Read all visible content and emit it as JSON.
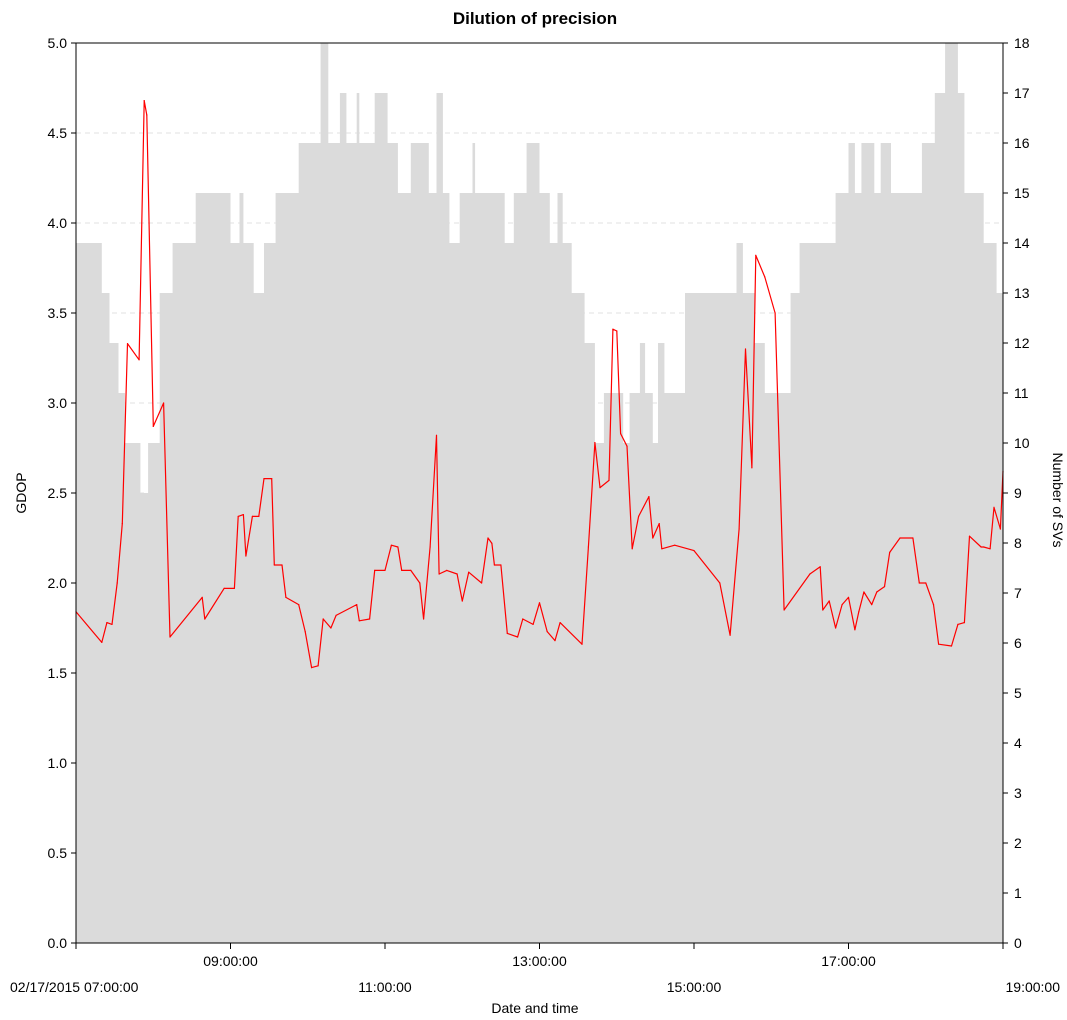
{
  "chart_data": {
    "type": "area",
    "title": "Dilution of precision",
    "xlabel": "Date and time",
    "ylabel": "GDOP",
    "y2label": "Number of SVs",
    "x_range": [
      "02/17/2015 07:00:00",
      "02/17/2015 19:00:00"
    ],
    "ylim": [
      0,
      5
    ],
    "y2lim": [
      0,
      18
    ],
    "y_ticks": [
      "0.0",
      "0.5",
      "1.0",
      "1.5",
      "2.0",
      "2.5",
      "3.0",
      "3.5",
      "4.0",
      "4.5",
      "5.0"
    ],
    "y2_ticks": [
      "0",
      "1",
      "2",
      "3",
      "4",
      "5",
      "6",
      "7",
      "8",
      "9",
      "10",
      "11",
      "12",
      "13",
      "14",
      "15",
      "16",
      "17",
      "18"
    ],
    "x_ticks_upper": [
      "09:00:00",
      "13:00:00",
      "17:00:00"
    ],
    "x_ticks_lower": [
      "02/17/2015 07:00:00",
      "11:00:00",
      "15:00:00",
      "19:00:00"
    ],
    "grid": "horizontal dashed",
    "colors": {
      "svs_fill": "#dbdbdb",
      "gdop_line": "#ff0000"
    },
    "series": [
      {
        "type": "step-area",
        "axis": "right",
        "points": [
          [
            "07:00",
            14
          ],
          [
            "07:20",
            13
          ],
          [
            "07:26",
            12
          ],
          [
            "07:33",
            11
          ],
          [
            "07:38",
            10
          ],
          [
            "07:50",
            9
          ],
          [
            "07:56",
            10
          ],
          [
            "08:05",
            13
          ],
          [
            "08:15",
            14
          ],
          [
            "08:33",
            15
          ],
          [
            "09:00",
            14
          ],
          [
            "09:07",
            15
          ],
          [
            "09:10",
            14
          ],
          [
            "09:18",
            13
          ],
          [
            "09:26",
            14
          ],
          [
            "09:35",
            15
          ],
          [
            "09:53",
            16
          ],
          [
            "10:10",
            18
          ],
          [
            "10:16",
            16
          ],
          [
            "10:25",
            17
          ],
          [
            "10:30",
            16
          ],
          [
            "10:38",
            17
          ],
          [
            "10:40",
            16
          ],
          [
            "10:52",
            17
          ],
          [
            "11:02",
            16
          ],
          [
            "11:10",
            15
          ],
          [
            "11:20",
            16
          ],
          [
            "11:34",
            15
          ],
          [
            "11:40",
            17
          ],
          [
            "11:45",
            15
          ],
          [
            "11:50",
            14
          ],
          [
            "11:58",
            15
          ],
          [
            "12:08",
            16
          ],
          [
            "12:10",
            15
          ],
          [
            "12:33",
            14
          ],
          [
            "12:40",
            15
          ],
          [
            "12:50",
            16
          ],
          [
            "13:00",
            15
          ],
          [
            "13:08",
            14
          ],
          [
            "13:14",
            15
          ],
          [
            "13:18",
            14
          ],
          [
            "13:25",
            13
          ],
          [
            "13:35",
            12
          ],
          [
            "13:43",
            10
          ],
          [
            "13:50",
            11
          ],
          [
            "14:05",
            10
          ],
          [
            "14:10",
            11
          ],
          [
            "14:18",
            12
          ],
          [
            "14:22",
            11
          ],
          [
            "14:28",
            10
          ],
          [
            "14:32",
            12
          ],
          [
            "14:37",
            11
          ],
          [
            "14:53",
            13
          ],
          [
            "15:33",
            14
          ],
          [
            "15:38",
            13
          ],
          [
            "15:47",
            12
          ],
          [
            "15:55",
            11
          ],
          [
            "16:15",
            13
          ],
          [
            "16:22",
            14
          ],
          [
            "16:50",
            15
          ],
          [
            "17:00",
            16
          ],
          [
            "17:05",
            15
          ],
          [
            "17:10",
            16
          ],
          [
            "17:20",
            15
          ],
          [
            "17:25",
            16
          ],
          [
            "17:33",
            15
          ],
          [
            "17:57",
            16
          ],
          [
            "18:07",
            17
          ],
          [
            "18:15",
            18
          ],
          [
            "18:25",
            17
          ],
          [
            "18:30",
            15
          ],
          [
            "18:45",
            14
          ],
          [
            "18:55",
            13
          ],
          [
            "19:00",
            13
          ]
        ]
      },
      {
        "type": "line",
        "axis": "left",
        "points": [
          [
            "07:00",
            1.84
          ],
          [
            "07:20",
            1.67
          ],
          [
            "07:24",
            1.78
          ],
          [
            "07:28",
            1.77
          ],
          [
            "07:32",
            2.0
          ],
          [
            "07:36",
            2.33
          ],
          [
            "07:40",
            3.33
          ],
          [
            "07:49",
            3.24
          ],
          [
            "07:53",
            4.68
          ],
          [
            "07:55",
            4.6
          ],
          [
            "08:00",
            2.87
          ],
          [
            "08:08",
            3.0
          ],
          [
            "08:13",
            1.7
          ],
          [
            "08:38",
            1.92
          ],
          [
            "08:40",
            1.8
          ],
          [
            "08:55",
            1.97
          ],
          [
            "09:03",
            1.97
          ],
          [
            "09:06",
            2.37
          ],
          [
            "09:10",
            2.38
          ],
          [
            "09:12",
            2.15
          ],
          [
            "09:17",
            2.37
          ],
          [
            "09:22",
            2.37
          ],
          [
            "09:26",
            2.58
          ],
          [
            "09:32",
            2.58
          ],
          [
            "09:34",
            2.1
          ],
          [
            "09:40",
            2.1
          ],
          [
            "09:43",
            1.92
          ],
          [
            "09:53",
            1.88
          ],
          [
            "09:58",
            1.73
          ],
          [
            "10:03",
            1.53
          ],
          [
            "10:08",
            1.54
          ],
          [
            "10:12",
            1.8
          ],
          [
            "10:18",
            1.75
          ],
          [
            "10:22",
            1.82
          ],
          [
            "10:38",
            1.88
          ],
          [
            "10:40",
            1.79
          ],
          [
            "10:48",
            1.8
          ],
          [
            "10:52",
            2.07
          ],
          [
            "11:00",
            2.07
          ],
          [
            "11:05",
            2.21
          ],
          [
            "11:10",
            2.2
          ],
          [
            "11:13",
            2.07
          ],
          [
            "11:20",
            2.07
          ],
          [
            "11:27",
            2.0
          ],
          [
            "11:30",
            1.8
          ],
          [
            "11:35",
            2.2
          ],
          [
            "11:40",
            2.82
          ],
          [
            "11:42",
            2.05
          ],
          [
            "11:48",
            2.07
          ],
          [
            "11:56",
            2.05
          ],
          [
            "12:00",
            1.9
          ],
          [
            "12:05",
            2.06
          ],
          [
            "12:15",
            2.0
          ],
          [
            "12:20",
            2.25
          ],
          [
            "12:23",
            2.22
          ],
          [
            "12:25",
            2.1
          ],
          [
            "12:30",
            2.1
          ],
          [
            "12:35",
            1.72
          ],
          [
            "12:43",
            1.7
          ],
          [
            "12:47",
            1.8
          ],
          [
            "12:55",
            1.77
          ],
          [
            "13:00",
            1.89
          ],
          [
            "13:06",
            1.73
          ],
          [
            "13:12",
            1.68
          ],
          [
            "13:16",
            1.78
          ],
          [
            "13:33",
            1.66
          ],
          [
            "13:38",
            2.2
          ],
          [
            "13:43",
            2.78
          ],
          [
            "13:47",
            2.53
          ],
          [
            "13:54",
            2.57
          ],
          [
            "13:57",
            3.41
          ],
          [
            "14:00",
            3.4
          ],
          [
            "14:03",
            2.83
          ],
          [
            "14:08",
            2.76
          ],
          [
            "14:12",
            2.19
          ],
          [
            "14:17",
            2.37
          ],
          [
            "14:25",
            2.48
          ],
          [
            "14:28",
            2.25
          ],
          [
            "14:33",
            2.33
          ],
          [
            "14:35",
            2.19
          ],
          [
            "14:45",
            2.21
          ],
          [
            "15:00",
            2.18
          ],
          [
            "15:20",
            2.0
          ],
          [
            "15:28",
            1.71
          ],
          [
            "15:35",
            2.3
          ],
          [
            "15:40",
            3.3
          ],
          [
            "15:45",
            2.64
          ],
          [
            "15:48",
            3.82
          ],
          [
            "15:55",
            3.7
          ],
          [
            "16:03",
            3.5
          ],
          [
            "16:10",
            1.85
          ],
          [
            "16:30",
            2.05
          ],
          [
            "16:38",
            2.09
          ],
          [
            "16:40",
            1.85
          ],
          [
            "16:45",
            1.9
          ],
          [
            "16:50",
            1.75
          ],
          [
            "16:55",
            1.88
          ],
          [
            "17:00",
            1.92
          ],
          [
            "17:05",
            1.74
          ],
          [
            "17:08",
            1.84
          ],
          [
            "17:12",
            1.95
          ],
          [
            "17:18",
            1.88
          ],
          [
            "17:22",
            1.95
          ],
          [
            "17:28",
            1.98
          ],
          [
            "17:32",
            2.17
          ],
          [
            "17:40",
            2.25
          ],
          [
            "17:50",
            2.25
          ],
          [
            "17:55",
            2.0
          ],
          [
            "18:00",
            2.0
          ],
          [
            "18:06",
            1.88
          ],
          [
            "18:10",
            1.66
          ],
          [
            "18:20",
            1.65
          ],
          [
            "18:25",
            1.77
          ],
          [
            "18:30",
            1.78
          ],
          [
            "18:34",
            2.26
          ],
          [
            "18:43",
            2.2
          ],
          [
            "18:45",
            2.2
          ],
          [
            "18:50",
            2.19
          ],
          [
            "18:53",
            2.42
          ],
          [
            "18:58",
            2.3
          ],
          [
            "19:00",
            2.62
          ]
        ]
      }
    ]
  }
}
